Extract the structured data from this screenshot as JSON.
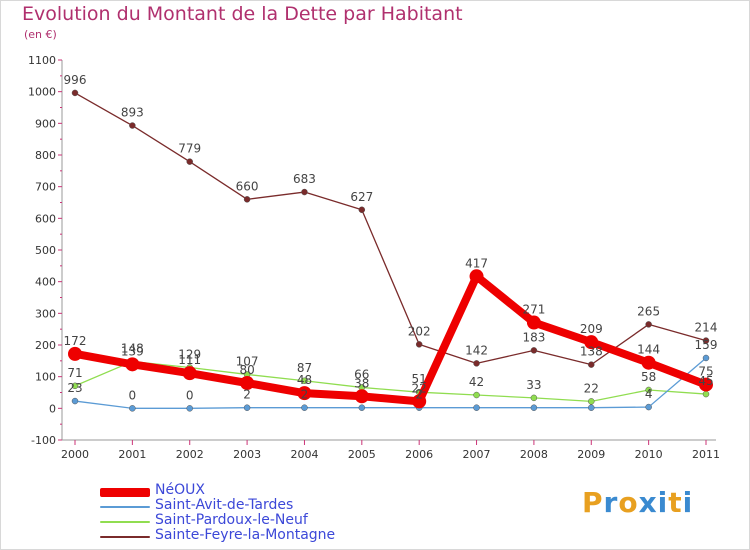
{
  "title": "Evolution du Montant de la Dette par Habitant",
  "unit": "(en €)",
  "brand": {
    "letters": [
      "P",
      "r",
      "o",
      "x",
      "i",
      "t",
      "i"
    ],
    "colors": [
      "#e8a020",
      "#3a8ad0",
      "#e8a020",
      "#3a8ad0",
      "#3a8ad0",
      "#e8a020",
      "#3a8ad0"
    ]
  },
  "chart_data": {
    "type": "line",
    "title": "Evolution du Montant de la Dette par Habitant",
    "ylabel": "(en €)",
    "xlabel": "",
    "x": [
      "2000",
      "2001",
      "2002",
      "2003",
      "2004",
      "2005",
      "2006",
      "2007",
      "2008",
      "2009",
      "2010",
      "2011"
    ],
    "ylim": [
      -100,
      1100
    ],
    "yticks": [
      -100,
      0,
      100,
      200,
      300,
      400,
      500,
      600,
      700,
      800,
      900,
      1000,
      1100
    ],
    "grid": false,
    "legend_position": "bottom-left",
    "series": [
      {
        "name": "NéOUX",
        "color": "#ee0000",
        "values": [
          172,
          139,
          111,
          80,
          48,
          38,
          22,
          417,
          271,
          209,
          144,
          75
        ],
        "labels": [
          "172",
          "139",
          "111",
          "80",
          "48",
          "38",
          "22",
          "417",
          "271",
          "209",
          "144",
          "75"
        ]
      },
      {
        "name": "Saint-Avit-de-Tardes",
        "color": "#5b9bd5",
        "values": [
          23,
          0,
          0,
          2,
          2,
          2,
          2,
          2,
          2,
          2,
          4,
          159
        ],
        "labels": [
          "23",
          "0",
          "0",
          "2",
          "2",
          "",
          "2",
          "",
          "",
          "",
          "4",
          "159"
        ]
      },
      {
        "name": "Saint-Pardoux-le-Neuf",
        "color": "#90dd50",
        "values": [
          71,
          148,
          129,
          107,
          87,
          66,
          51,
          42,
          33,
          22,
          58,
          45
        ],
        "labels": [
          "71",
          "148",
          "129",
          "107",
          "87",
          "66",
          "51",
          "42",
          "33",
          "22",
          "58",
          "45"
        ]
      },
      {
        "name": "Sainte-Feyre-la-Montagne",
        "color": "#7a2b2b",
        "values": [
          996,
          893,
          779,
          660,
          683,
          627,
          202,
          142,
          183,
          138,
          265,
          214
        ],
        "labels": [
          "996",
          "893",
          "779",
          "660",
          "683",
          "627",
          "202",
          "142",
          "183",
          "138",
          "265",
          "214"
        ]
      }
    ]
  }
}
